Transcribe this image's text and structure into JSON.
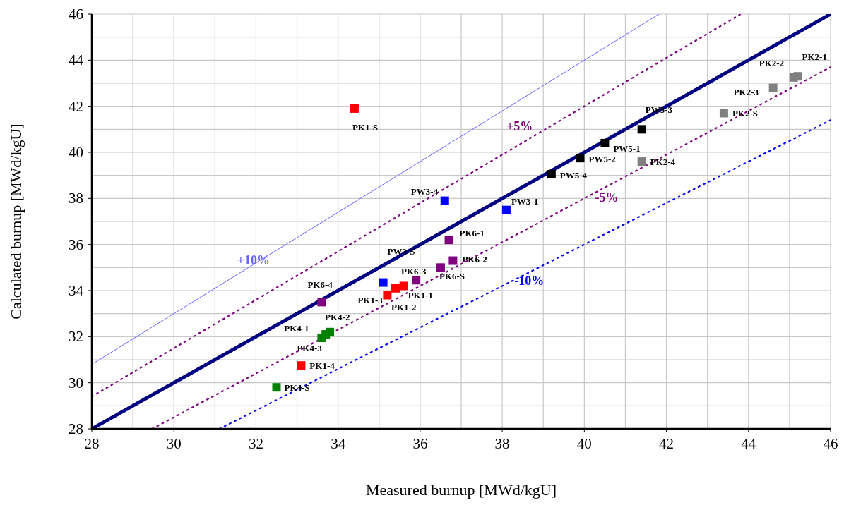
{
  "chart_data": {
    "type": "scatter",
    "xlabel": "Measured burnup [MWd/kgU]",
    "ylabel": "Calculated burnup [MWd/kgU]",
    "xlim": [
      28,
      46
    ],
    "ylim": [
      28,
      46
    ],
    "xticks": [
      28,
      {
        "value": 29,
        "label": null
      },
      30,
      {
        "value": 31,
        "label": null
      },
      32,
      {
        "value": 33,
        "label": null
      },
      34,
      {
        "value": 35,
        "label": null
      },
      36,
      {
        "value": 37,
        "label": null
      },
      38,
      {
        "value": 39,
        "label": null
      },
      40,
      {
        "value": 41,
        "label": null
      },
      42,
      {
        "value": 43,
        "label": null
      },
      44,
      {
        "value": 45,
        "label": null
      },
      46
    ],
    "yticks": [
      28,
      {
        "value": 29,
        "label": null
      },
      30,
      {
        "value": 31,
        "label": null
      },
      32,
      {
        "value": 33,
        "label": null
      },
      34,
      {
        "value": 35,
        "label": null
      },
      36,
      {
        "value": 37,
        "label": null
      },
      38,
      {
        "value": 39,
        "label": null
      },
      40,
      {
        "value": 41,
        "label": null
      },
      42,
      {
        "value": 43,
        "label": null
      },
      44,
      {
        "value": 45,
        "label": null
      },
      46
    ],
    "grid": true,
    "marker": "square",
    "series": [
      {
        "type": "line",
        "color": "#000080",
        "line_style": "solid",
        "marker": "none",
        "x": [
          28,
          46
        ],
        "values": [
          28,
          46
        ]
      },
      {
        "type": "line",
        "name": "+10%",
        "color": "#6666ff",
        "line_style": "solid",
        "marker": "none",
        "x": [
          28,
          41.82
        ],
        "values": [
          30.8,
          46
        ]
      },
      {
        "type": "line",
        "name": "+5%",
        "color": "#800080",
        "line_style": "dotted",
        "marker": "none",
        "x": [
          28,
          43.81
        ],
        "values": [
          29.4,
          46
        ]
      },
      {
        "type": "line",
        "name": "-5%",
        "color": "#800080",
        "line_style": "dotted",
        "marker": "none",
        "x": [
          29.47,
          46
        ],
        "values": [
          28,
          43.7
        ]
      },
      {
        "type": "line",
        "name": "-10%",
        "color": "#0000ff",
        "line_style": "dotted",
        "marker": "none",
        "x": [
          31.11,
          46
        ],
        "values": [
          28,
          41.4
        ]
      },
      {
        "color": "#ff0000",
        "x": [
          34.4,
          35.2,
          35.4,
          35.6,
          33.1
        ],
        "values": [
          41.9,
          33.8,
          34.1,
          34.2,
          30.75
        ],
        "value_labels": [
          "PK1-S",
          "PK1-3",
          "PK1-2",
          "PK1-1",
          "PK1-4"
        ]
      },
      {
        "color": "#808080",
        "x": [
          45.2,
          45.1,
          44.6,
          43.4,
          41.4
        ],
        "values": [
          43.3,
          43.25,
          42.8,
          41.7,
          39.6
        ],
        "value_labels": [
          "PK2-1",
          "PK2-2",
          "PK2-3",
          "PK2-S",
          "PK2-4"
        ]
      },
      {
        "color": "#000000",
        "x": [
          41.4,
          40.5,
          39.9,
          39.2
        ],
        "values": [
          41.0,
          40.4,
          39.75,
          39.05
        ],
        "value_labels": [
          "PW5-3",
          "PW5-1",
          "PW5-2",
          "PW5-4"
        ]
      },
      {
        "color": "#0000ff",
        "x": [
          36.6,
          38.1,
          35.1
        ],
        "values": [
          37.9,
          37.5,
          34.35
        ],
        "value_labels": [
          "PW3-4",
          "PW3-1",
          "PW3-S"
        ]
      },
      {
        "color": "#800080",
        "x": [
          36.7,
          36.8,
          36.5,
          35.9,
          33.6
        ],
        "values": [
          36.2,
          35.3,
          35.0,
          34.45,
          33.5
        ],
        "value_labels": [
          "PK6-1",
          "PK6-2",
          "PK6-S",
          "PK6-3",
          "PK6-4"
        ]
      },
      {
        "color": "#008000",
        "x": [
          33.7,
          33.6,
          33.8,
          32.5
        ],
        "values": [
          32.1,
          31.95,
          32.2,
          29.8
        ],
        "value_labels": [
          "PK4-1",
          "PK4-3",
          "PK4-2",
          "PK4-S"
        ]
      }
    ]
  }
}
